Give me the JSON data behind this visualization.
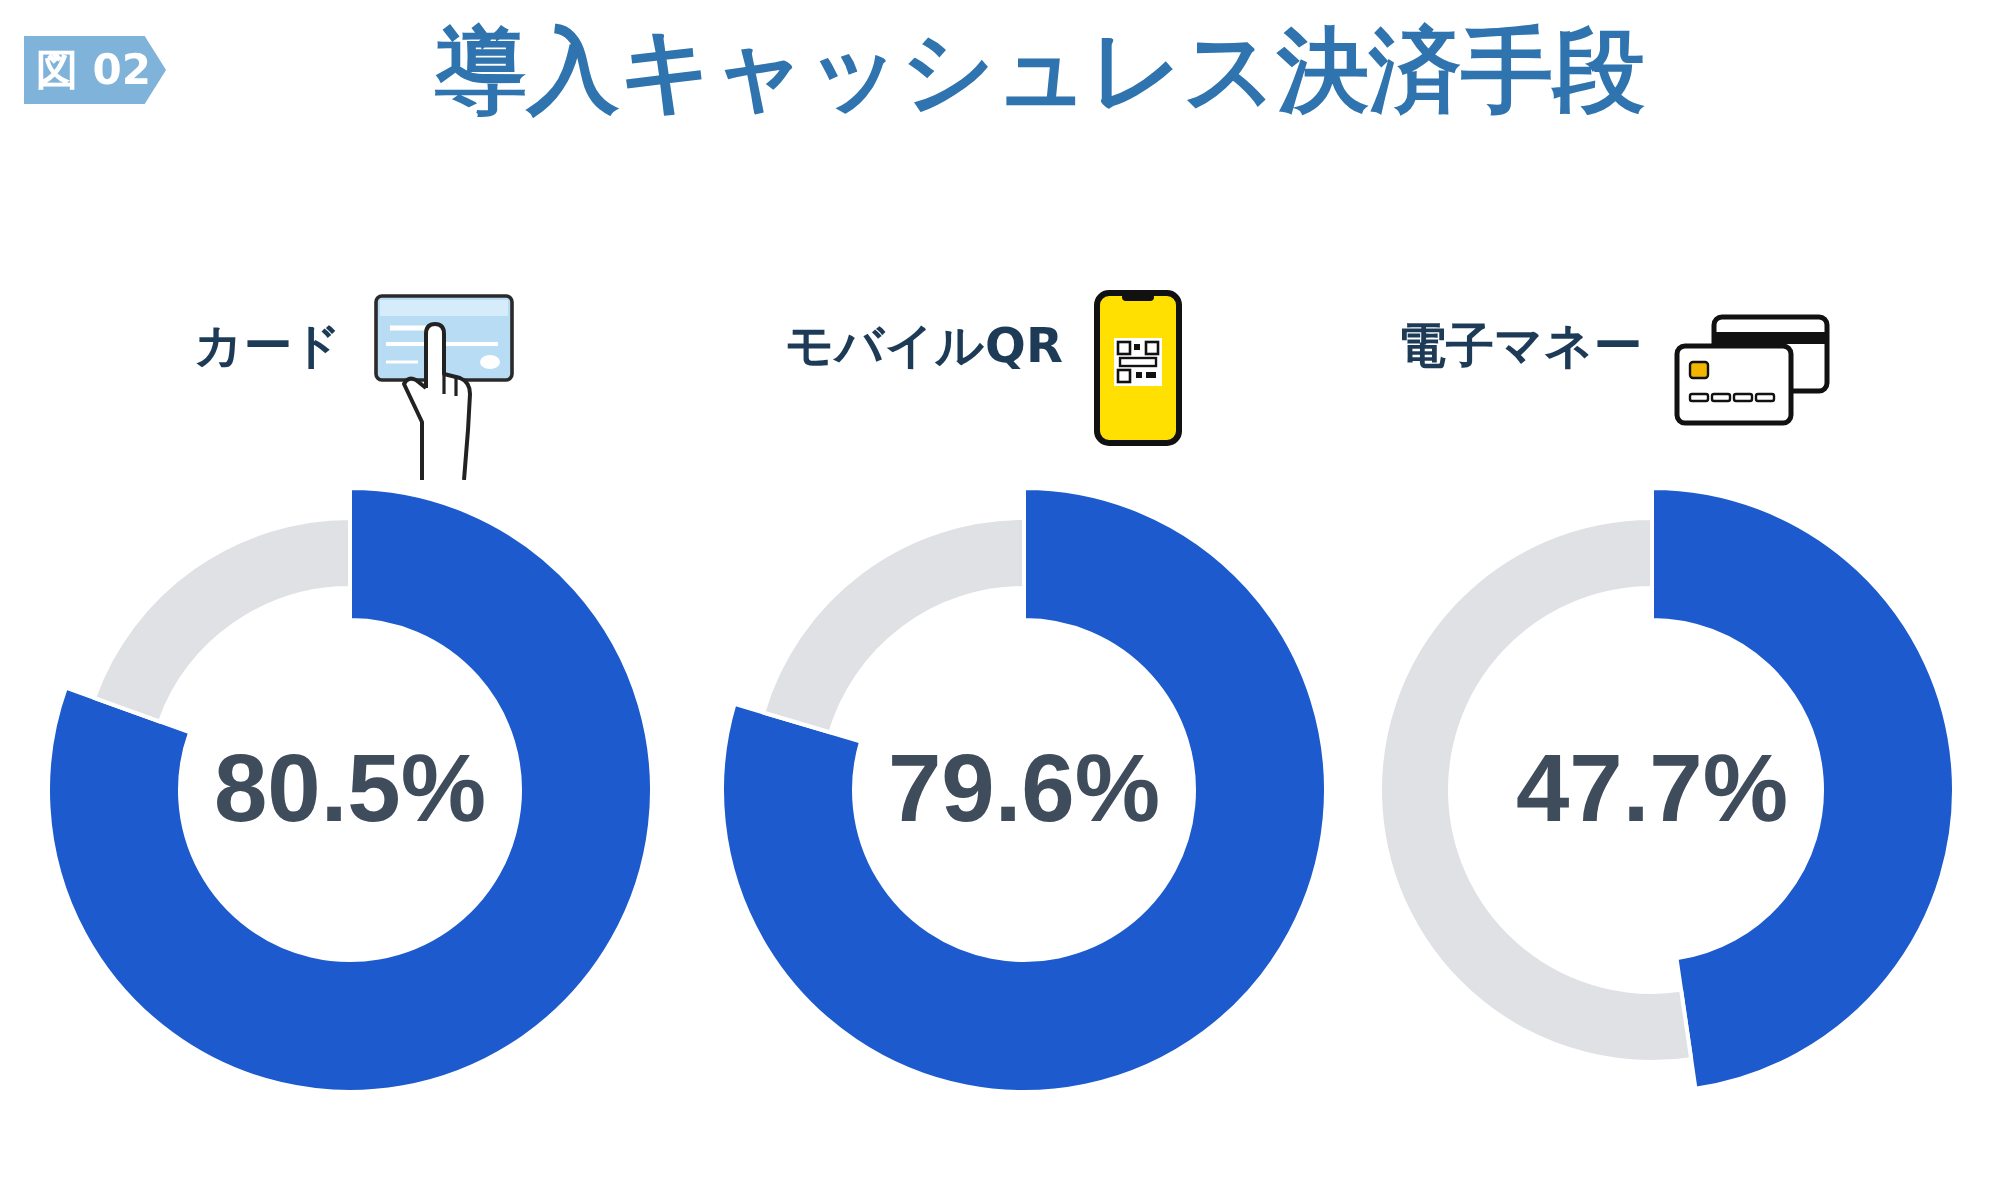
{
  "chart_data": [
    {
      "type": "donut",
      "title": "カード",
      "categories": [
        null,
        null
      ],
      "values": [
        80.5,
        19.5
      ],
      "colors": [
        "#1c5ace",
        "#dfe1e5"
      ],
      "annotations": [
        "図 02",
        "導入キャッシュレス決済手段",
        "80.5%"
      ]
    },
    {
      "type": "donut",
      "title": "モバイルQR",
      "categories": [
        null,
        null
      ],
      "values": [
        79.6,
        20.4
      ],
      "colors": [
        "#1c5ace",
        "#dfe1e5"
      ],
      "annotations": [
        "79.6%"
      ]
    },
    {
      "type": "donut",
      "title": "電子マネー",
      "categories": [
        null,
        null
      ],
      "values": [
        47.7,
        52.3
      ],
      "colors": [
        "#1c5ace",
        "#dfe1e5"
      ],
      "annotations": [
        "47.7%"
      ]
    }
  ]
}
